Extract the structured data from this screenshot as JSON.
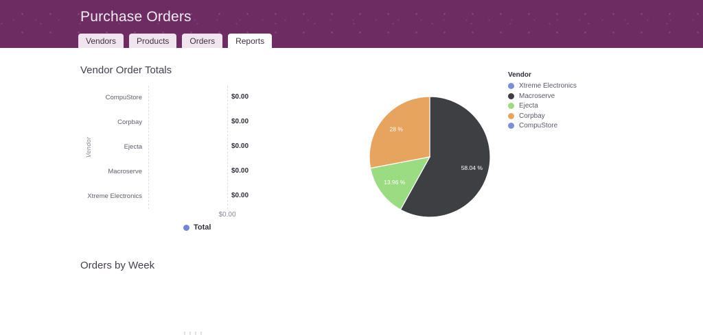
{
  "header": {
    "title": "Purchase Orders",
    "background_color": "#6d2d63",
    "tabs": [
      {
        "label": "Vendors",
        "active": false
      },
      {
        "label": "Products",
        "active": false
      },
      {
        "label": "Orders",
        "active": false
      },
      {
        "label": "Reports",
        "active": true
      }
    ]
  },
  "sections": {
    "vendor_order_totals": {
      "title": "Vendor Order Totals"
    },
    "orders_by_week": {
      "title": "Orders by Week"
    }
  },
  "chart_data": [
    {
      "type": "bar",
      "orientation": "horizontal",
      "title": "Vendor Order Totals",
      "ylabel": "Vendor",
      "categories": [
        "CompuStore",
        "Corpbay",
        "Ejecta",
        "Macroserve",
        "Xtreme Electronics"
      ],
      "values": [
        0,
        0,
        0,
        0,
        0
      ],
      "value_labels": [
        "$0.00",
        "$0.00",
        "$0.00",
        "$0.00",
        "$0.00"
      ],
      "x_tick_labels": [
        "$0.00"
      ],
      "xlim": [
        0,
        0
      ],
      "grid": "dashed-vertical",
      "legend_position": "bottom",
      "legend": [
        {
          "label": "Total",
          "color": "#7186d6"
        }
      ]
    },
    {
      "type": "pie",
      "legend_title": "Vendor",
      "legend_position": "right",
      "start_angle_deg": 0,
      "labels": [
        "Xtreme Electronics",
        "Macroserve",
        "Ejecta",
        "Corpbay",
        "CompuStore"
      ],
      "values_pct": [
        0,
        58.04,
        13.96,
        28,
        0
      ],
      "slice_labels": [
        "",
        "58.04 %",
        "13.96 %",
        "28 %",
        ""
      ],
      "colors": [
        "#7a8ed9",
        "#3d3f43",
        "#9bdc82",
        "#e6a45e",
        "#7a8ed9"
      ]
    }
  ]
}
